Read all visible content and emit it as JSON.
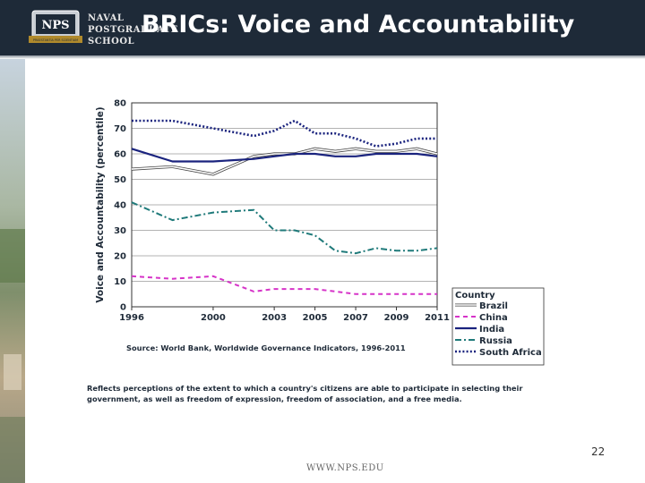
{
  "header": {
    "title": "BRICs: Voice and Accountability",
    "logo_text_line1": "NAVAL",
    "logo_text_line2": "POSTGRADUATE",
    "logo_text_line3": "SCHOOL",
    "logo_badge": "NPS",
    "logo_ribbon": "PRAESTANTIA PER SCIENTIAM"
  },
  "colors": {
    "header_bg": "#1e2a38",
    "brazil": "#444444",
    "china": "#d633c8",
    "india": "#1a237e",
    "russia": "#1f7a7a",
    "south_africa": "#1a237e"
  },
  "chart_data": {
    "type": "line",
    "title": "",
    "xlabel": "",
    "ylabel": "Voice and Accountability (percentile)",
    "xlim": [
      1996,
      2011
    ],
    "ylim": [
      0,
      80
    ],
    "xticks": [
      "1996",
      "2000",
      "2003",
      "2005",
      "2007",
      "2009",
      "2011"
    ],
    "yticks": [
      "0",
      "10",
      "20",
      "30",
      "40",
      "50",
      "60",
      "70",
      "80"
    ],
    "legend_title": "Country",
    "legend_position": "bottom-right",
    "x": [
      1996,
      1998,
      2000,
      2002,
      2003,
      2004,
      2005,
      2006,
      2007,
      2008,
      2009,
      2010,
      2011
    ],
    "series": [
      {
        "name": "Brazil",
        "style": "double",
        "values": [
          54,
          55,
          52,
          59,
          60,
          60,
          62,
          61,
          62,
          61,
          61,
          62,
          60
        ]
      },
      {
        "name": "China",
        "style": "dash",
        "values": [
          12,
          11,
          12,
          6,
          7,
          7,
          7,
          6,
          5,
          5,
          5,
          5,
          5
        ]
      },
      {
        "name": "India",
        "style": "solid",
        "values": [
          62,
          57,
          57,
          58,
          59,
          60,
          60,
          59,
          59,
          60,
          60,
          60,
          59
        ]
      },
      {
        "name": "Russia",
        "style": "dashdot",
        "values": [
          41,
          34,
          37,
          38,
          30,
          30,
          28,
          22,
          21,
          23,
          22,
          22,
          23
        ]
      },
      {
        "name": "South Africa",
        "style": "dotted",
        "values": [
          73,
          73,
          70,
          67,
          69,
          73,
          68,
          68,
          66,
          63,
          64,
          66,
          66
        ]
      }
    ],
    "source": "Source: World Bank, Worldwide Governance Indicators, 1996-2011"
  },
  "note": "Reflects perceptions of the extent to which a country's citizens are able to participate in selecting their government, as well as freedom of expression, freedom of association, and a free media.",
  "slide_number": "22",
  "footer_url": "WWW.NPS.EDU"
}
